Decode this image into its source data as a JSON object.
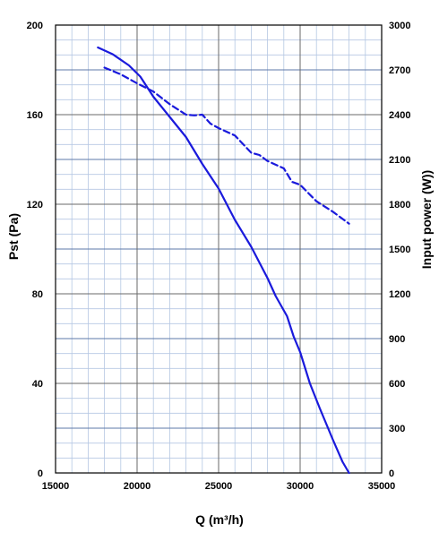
{
  "chart_data": {
    "type": "line",
    "title": "",
    "xlabel": "Q (m³/h)",
    "ylabel_left": "Pst (Pa)",
    "ylabel_right": "Input power  (W))",
    "xlim": [
      15000,
      35000
    ],
    "ylim_left": [
      0,
      200
    ],
    "ylim_right": [
      0,
      3000
    ],
    "x_ticks": [
      "15000",
      "20000",
      "25000",
      "30000",
      "35000"
    ],
    "y_ticks_left": [
      "0",
      "40",
      "80",
      "120",
      "160",
      "200"
    ],
    "y_ticks_right": [
      "0",
      "300",
      "600",
      "900",
      "1200",
      "1500",
      "1800",
      "2100",
      "2400",
      "2700",
      "3000"
    ],
    "grid": true,
    "series": [
      {
        "axis": "left",
        "style": "solid",
        "color": "#1a1adc",
        "points": [
          [
            17600,
            190
          ],
          [
            18500,
            187
          ],
          [
            19500,
            182
          ],
          [
            20200,
            177
          ],
          [
            21000,
            168
          ],
          [
            22000,
            159
          ],
          [
            23000,
            150
          ],
          [
            24000,
            138
          ],
          [
            25000,
            127
          ],
          [
            26000,
            113
          ],
          [
            27000,
            101
          ],
          [
            28000,
            87
          ],
          [
            28500,
            79
          ],
          [
            29200,
            70
          ],
          [
            29600,
            61
          ],
          [
            30000,
            54
          ],
          [
            30600,
            40
          ],
          [
            31200,
            29
          ],
          [
            32000,
            15
          ],
          [
            32600,
            5
          ],
          [
            33000,
            0
          ]
        ]
      },
      {
        "axis": "right",
        "style": "dashed",
        "color": "#1a1adc",
        "points": [
          [
            18000,
            2715
          ],
          [
            19000,
            2670
          ],
          [
            20000,
            2610
          ],
          [
            21000,
            2555
          ],
          [
            22000,
            2470
          ],
          [
            23000,
            2400
          ],
          [
            23500,
            2395
          ],
          [
            24000,
            2400
          ],
          [
            24500,
            2340
          ],
          [
            25000,
            2310
          ],
          [
            26000,
            2260
          ],
          [
            27000,
            2145
          ],
          [
            27500,
            2130
          ],
          [
            28000,
            2090
          ],
          [
            29000,
            2040
          ],
          [
            29500,
            1950
          ],
          [
            30000,
            1930
          ],
          [
            31000,
            1820
          ],
          [
            32000,
            1750
          ],
          [
            33000,
            1670
          ]
        ]
      }
    ]
  }
}
